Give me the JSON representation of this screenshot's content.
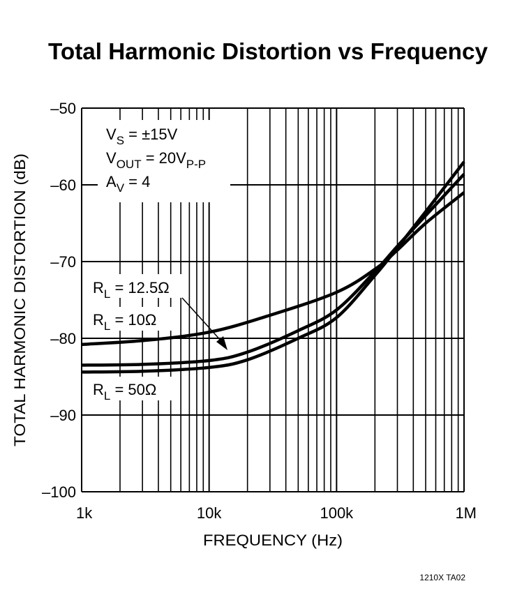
{
  "chart_data": {
    "type": "line",
    "title": "Total Harmonic Distortion vs Frequency",
    "xlabel": "FREQUENCY (Hz)",
    "ylabel": "TOTAL HARMONIC DISTORTION (dB)",
    "xscale": "log",
    "xlim": [
      1000,
      1000000
    ],
    "ylim": [
      -100,
      -50
    ],
    "grid": true,
    "x_tick_values": [
      1000,
      10000,
      100000,
      1000000
    ],
    "x_tick_labels": [
      "1k",
      "10k",
      "100k",
      "1M"
    ],
    "y_tick_values": [
      -50,
      -60,
      -70,
      -80,
      -90,
      -100
    ],
    "y_tick_labels": [
      "–50",
      "–60",
      "–70",
      "–80",
      "–90",
      "–100"
    ],
    "series": [
      {
        "name": "RL = 10Ω",
        "x": [
          1000,
          3000,
          10000,
          30000,
          100000,
          200000,
          300000,
          500000,
          1000000
        ],
        "y": [
          -80.8,
          -80.3,
          -79.2,
          -77,
          -74,
          -71,
          -68.5,
          -65,
          -61
        ]
      },
      {
        "name": "RL = 12.5Ω",
        "x": [
          1000,
          3000,
          10000,
          20000,
          50000,
          100000,
          200000,
          300000,
          500000,
          1000000
        ],
        "y": [
          -83.5,
          -83.4,
          -82.9,
          -81.8,
          -79,
          -76.3,
          -71.3,
          -68,
          -64,
          -58.6
        ]
      },
      {
        "name": "RL = 50Ω",
        "x": [
          1000,
          3000,
          10000,
          20000,
          50000,
          100000,
          200000,
          300000,
          500000,
          1000000
        ],
        "y": [
          -84.4,
          -84.3,
          -83.8,
          -82.8,
          -80,
          -77.3,
          -71.8,
          -68.2,
          -63.5,
          -57
        ]
      }
    ],
    "conditions": [
      {
        "main": "V",
        "sub": "S",
        "rest": " = ±15V",
        "sub2": ""
      },
      {
        "main": "V",
        "sub": "OUT",
        "rest": " = 20V",
        "sub2": "P-P"
      },
      {
        "main": "A",
        "sub": "V",
        "rest": " = 4",
        "sub2": ""
      }
    ],
    "labels": [
      {
        "main": "R",
        "sub": "L",
        "rest": " = 12.5Ω"
      },
      {
        "main": "R",
        "sub": "L",
        "rest": " = 10Ω"
      },
      {
        "main": "R",
        "sub": "L",
        "rest": " = 50Ω"
      }
    ],
    "line_color": "#000000"
  },
  "footnote": "1210X TA02"
}
